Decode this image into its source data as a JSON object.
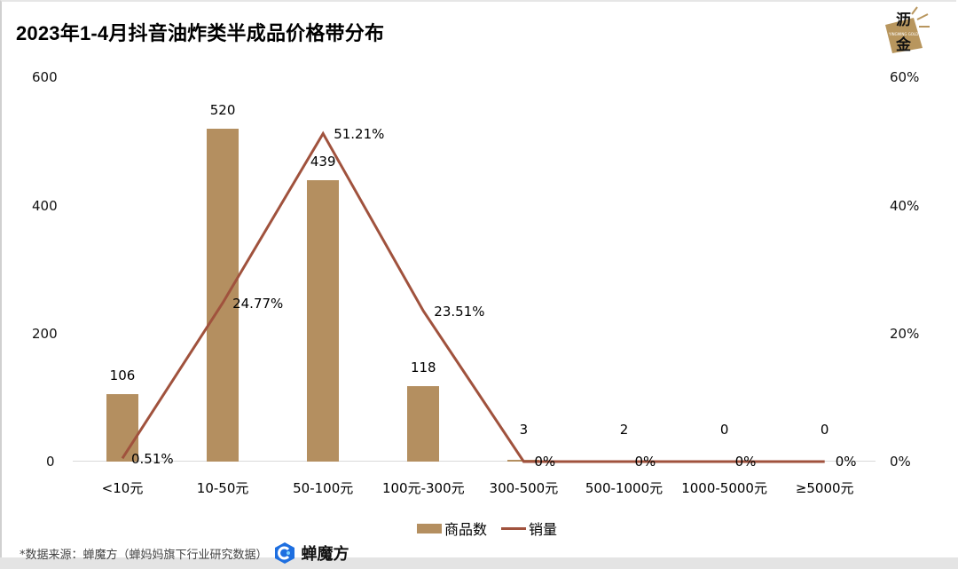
{
  "title": "2023年1-4月抖音油炸类半成品价格带分布",
  "logo": {
    "text_top": "沥",
    "text_bottom": "金",
    "subtext": "YINGMING GOLD",
    "color": "#B8965E"
  },
  "colors": {
    "bar": "#B48F60",
    "line": "#A0523D",
    "baseline": "#D9D9D9"
  },
  "axes": {
    "left_ticks": [
      "600",
      "400",
      "200",
      "0"
    ],
    "right_ticks": [
      "60%",
      "40%",
      "20%",
      "0%"
    ]
  },
  "chart_data": {
    "type": "bar+line",
    "title": "2023年1-4月抖音油炸类半成品价格带分布",
    "categories": [
      "<10元",
      "10-50元",
      "50-100元",
      "100元-300元",
      "300-500元",
      "500-1000元",
      "1000-5000元",
      "≥5000元"
    ],
    "series": [
      {
        "name": "商品数",
        "type": "bar",
        "axis": "left",
        "values": [
          106,
          520,
          439,
          118,
          3,
          2,
          0,
          0
        ]
      },
      {
        "name": "销量",
        "type": "line",
        "axis": "right",
        "values": [
          0.51,
          24.77,
          51.21,
          23.51,
          0,
          0,
          0,
          0
        ],
        "unit": "%"
      }
    ],
    "bar_labels": [
      "106",
      "520",
      "439",
      "118",
      "3",
      "2",
      "0",
      "0"
    ],
    "line_labels": [
      "0.51%",
      "24.77%",
      "51.21%",
      "23.51%",
      "0%",
      "0%",
      "0%",
      "0%"
    ],
    "xlabel": "",
    "ylabel_left": "",
    "ylabel_right": "",
    "ylim_left": [
      0,
      600
    ],
    "ylim_right": [
      0,
      60
    ],
    "yticks_left": [
      0,
      200,
      400,
      600
    ],
    "yticks_right": [
      "0%",
      "20%",
      "40%",
      "60%"
    ],
    "grid": false,
    "legend_position": "bottom"
  },
  "legend": {
    "bar_label": "商品数",
    "line_label": "销量"
  },
  "footer": {
    "source_text": "*数据来源：蝉魔方（蝉妈妈旗下行业研究数据）",
    "brand_name": "蝉魔方"
  }
}
